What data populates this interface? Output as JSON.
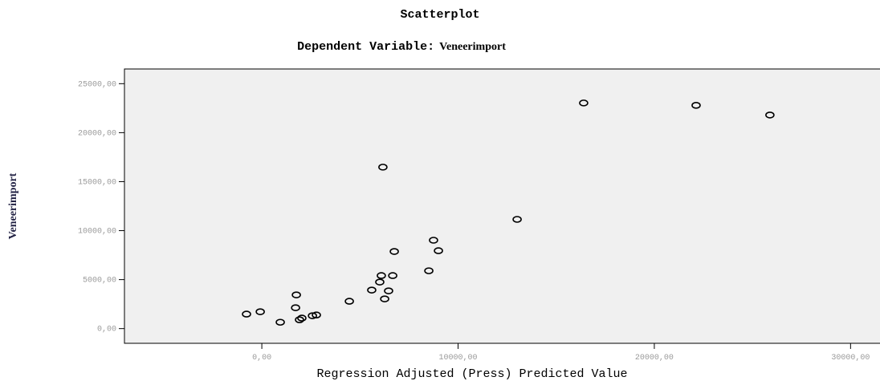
{
  "chart_data": {
    "type": "scatter",
    "title": "Scatterplot",
    "subtitle": "Dependent Variable:",
    "dependent_variable": "Veneerimport",
    "x_label": "Regression Adjusted (Press) Predicted Value",
    "y_label": "Veneerimport",
    "x": [
      -780,
      -80,
      940,
      1760,
      1720,
      1920,
      2040,
      2580,
      2780,
      4460,
      5600,
      6010,
      6090,
      6170,
      6260,
      6460,
      6670,
      6750,
      8510,
      8750,
      9000,
      13010,
      16400,
      22130,
      25890
    ],
    "values": [
      1480,
      1720,
      650,
      3440,
      2130,
      900,
      1070,
      1310,
      1390,
      2790,
      3930,
      4750,
      5410,
      16480,
      3030,
      3850,
      5410,
      7870,
      5900,
      9020,
      7950,
      11150,
      23030,
      22790,
      21800
    ],
    "color": "#000000",
    "background": "#f0f0f0",
    "xlim": [
      -7000,
      31500
    ],
    "ylim": [
      -1500,
      26500
    ],
    "xticks": [
      {
        "value": 0,
        "label": "0,00"
      },
      {
        "value": 10000,
        "label": "10000,00"
      },
      {
        "value": 20000,
        "label": "20000,00"
      },
      {
        "value": 30000,
        "label": "30000,00"
      }
    ],
    "yticks": [
      {
        "value": 0,
        "label": "0,00"
      },
      {
        "value": 5000,
        "label": "5000,00"
      },
      {
        "value": 10000,
        "label": "10000,00"
      },
      {
        "value": 15000,
        "label": "15000,00"
      },
      {
        "value": 20000,
        "label": "20000,00"
      },
      {
        "value": 25000,
        "label": "25000,00"
      }
    ]
  }
}
